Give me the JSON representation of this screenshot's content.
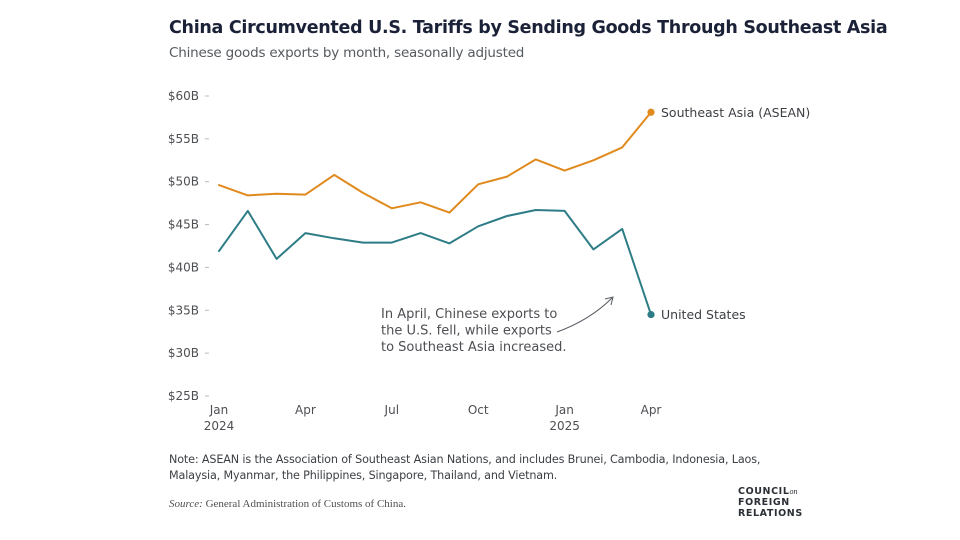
{
  "header": {
    "title": "China Circumvented U.S. Tariffs by Sending Goods Through Southeast Asia",
    "subtitle": "Chinese goods exports by month, seasonally adjusted"
  },
  "chart_data": {
    "type": "line",
    "title": "China Circumvented U.S. Tariffs by Sending Goods Through Southeast Asia",
    "subtitle": "Chinese goods exports by month, seasonally adjusted",
    "xlabel": "",
    "ylabel": "",
    "ylim": [
      25,
      60
    ],
    "yticks": [
      25,
      30,
      35,
      40,
      45,
      50,
      55,
      60
    ],
    "ytick_labels": [
      "$25B",
      "$30B",
      "$35B",
      "$40B",
      "$45B",
      "$50B",
      "$55B",
      "$60B"
    ],
    "x": [
      "Jan 2024",
      "Feb 2024",
      "Mar 2024",
      "Apr 2024",
      "May 2024",
      "Jun 2024",
      "Jul 2024",
      "Aug 2024",
      "Sep 2024",
      "Oct 2024",
      "Nov 2024",
      "Dec 2024",
      "Jan 2025",
      "Feb 2025",
      "Mar 2025",
      "Apr 2025"
    ],
    "xticks": [
      {
        "index": 0,
        "label": "Jan",
        "sublabel": "2024"
      },
      {
        "index": 3,
        "label": "Apr",
        "sublabel": ""
      },
      {
        "index": 6,
        "label": "Jul",
        "sublabel": ""
      },
      {
        "index": 9,
        "label": "Oct",
        "sublabel": ""
      },
      {
        "index": 12,
        "label": "Jan",
        "sublabel": "2025"
      },
      {
        "index": 15,
        "label": "Apr",
        "sublabel": ""
      }
    ],
    "grid": false,
    "legend": "direct labels at line ends (right)",
    "series": [
      {
        "name": "Southeast Asia (ASEAN)",
        "color": "#e08a1e",
        "values": [
          49.6,
          48.4,
          48.6,
          48.5,
          50.8,
          48.7,
          46.9,
          47.6,
          46.4,
          49.7,
          50.6,
          52.6,
          51.3,
          52.5,
          54.0,
          58.1
        ]
      },
      {
        "name": "United States",
        "color": "#2e7d86",
        "values": [
          41.9,
          46.6,
          41.0,
          44.0,
          43.4,
          42.9,
          42.9,
          44.0,
          42.8,
          44.8,
          46.0,
          46.7,
          46.6,
          42.1,
          44.5,
          34.5
        ]
      }
    ],
    "annotations": [
      {
        "lines": [
          "In April, Chinese exports to",
          "the U.S. fell, while exports",
          "to Southeast Asia increased."
        ],
        "arrow_to": "Apr 2025"
      }
    ]
  },
  "footer": {
    "note": "Note: ASEAN is the Association of Southeast Asian Nations, and includes Brunei, Cambodia, Indonesia, Laos, Malaysia, Myanmar, the Philippines, Singapore, Thailand, and Vietnam.",
    "source_label": "Source:",
    "source_text": " General Administration of Customs of China.",
    "logo": {
      "line1": "COUNCIL",
      "line1_suffix": "on",
      "line2": "FOREIGN",
      "line3": "RELATIONS"
    }
  }
}
